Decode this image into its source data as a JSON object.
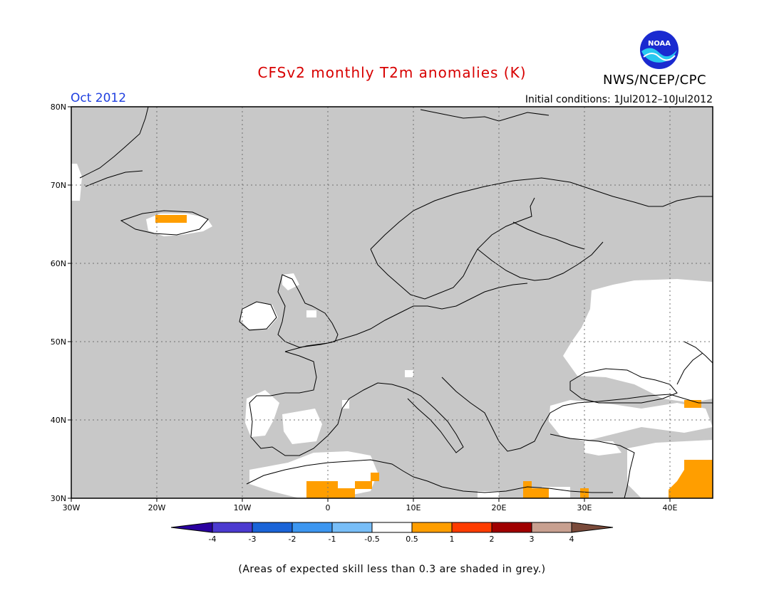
{
  "header": {
    "title": "CFSv2 monthly T2m anomalies (K)",
    "organization": "NWS/NCEP/CPC",
    "logo_text": "NOAA",
    "month": "Oct 2012",
    "initial_conditions": "Initial conditions: 1Jul2012–10Jul2012"
  },
  "map": {
    "lat_labels": [
      "80N",
      "70N",
      "60N",
      "50N",
      "40N",
      "30N"
    ],
    "lon_labels": [
      "30W",
      "20W",
      "10W",
      "0",
      "10E",
      "20E",
      "30E",
      "40E"
    ],
    "lon_range": [
      -30,
      45
    ],
    "lat_range": [
      30,
      80
    ],
    "grey_color": "#c8c8c8",
    "white_color": "#ffffff",
    "orange_color": "#ff9e00"
  },
  "colorbar": {
    "tick_labels": [
      "-4",
      "-3",
      "-2",
      "-1",
      "-0.5",
      "0.5",
      "1",
      "2",
      "3",
      "4"
    ],
    "colors": [
      "#2a00a0",
      "#4b3ad0",
      "#1a64d8",
      "#3c96f0",
      "#78bef8",
      "#ffffff",
      "#ff9e00",
      "#ff3c00",
      "#a00000",
      "#c8a090",
      "#7a4a3a"
    ]
  },
  "footer": {
    "note": "(Areas of expected skill less than 0.3 are shaded in grey.)"
  }
}
